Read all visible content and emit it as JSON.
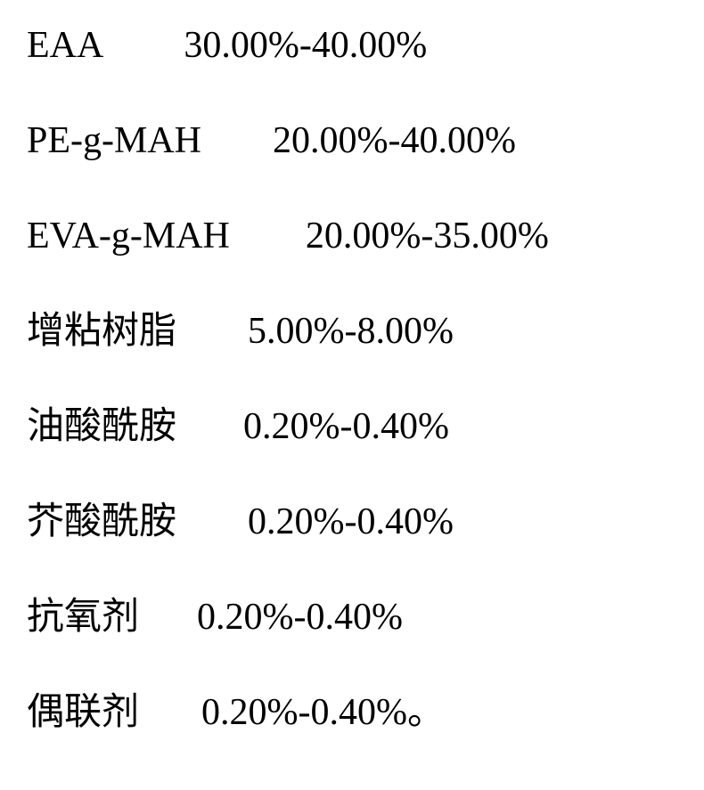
{
  "rows": [
    {
      "label": "EAA",
      "value": "30.00%-40.00%",
      "gap": "gap-90"
    },
    {
      "label": "PE-g-MAH",
      "value": "20.00%-40.00%",
      "gap": "gap-80"
    },
    {
      "label": "EVA-g-MAH",
      "value": "20.00%-35.00%",
      "gap": "gap-85"
    },
    {
      "label": "增粘树脂",
      "value": "5.00%-8.00%",
      "gap": "gap-80"
    },
    {
      "label": "油酸酰胺",
      "value": "0.20%-0.40%",
      "gap": "gap-75"
    },
    {
      "label": "芥酸酰胺",
      "value": "0.20%-0.40%",
      "gap": "gap-80"
    },
    {
      "label": "抗氧剂",
      "value": "0.20%-0.40%",
      "gap": "gap-65"
    },
    {
      "label": "偶联剂",
      "value": "0.20%-0.40%。",
      "gap": "gap-70"
    }
  ],
  "style": {
    "background_color": "#ffffff",
    "text_color": "#000000",
    "font_size": 42,
    "row_spacing": 65
  }
}
